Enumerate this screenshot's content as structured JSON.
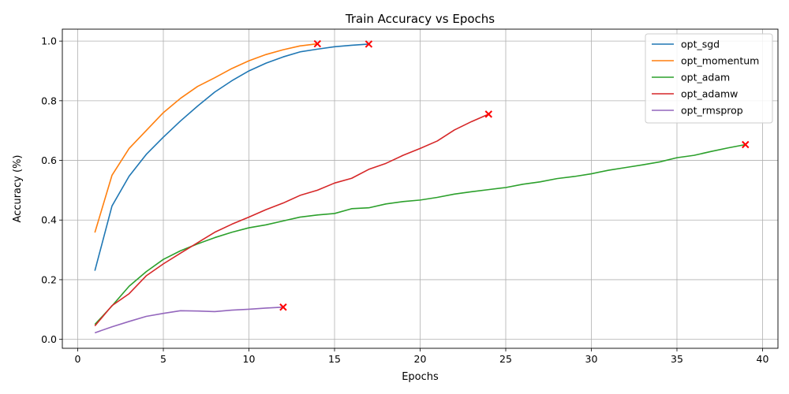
{
  "chart_data": {
    "type": "line",
    "title": "Train Accuracy vs Epochs",
    "xlabel": "Epochs",
    "ylabel": "Accuracy (%)",
    "xlim": [
      -0.9,
      40.9
    ],
    "ylim": [
      -0.03,
      1.04
    ],
    "xticks": [
      0,
      5,
      10,
      15,
      20,
      25,
      30,
      35,
      40
    ],
    "xtick_labels": [
      "0",
      "5",
      "10",
      "15",
      "20",
      "25",
      "30",
      "35",
      "40"
    ],
    "yticks": [
      0.0,
      0.2,
      0.4,
      0.6,
      0.8,
      1.0
    ],
    "ytick_labels": [
      "0.0",
      "0.2",
      "0.4",
      "0.6",
      "0.8",
      "1.0"
    ],
    "grid": true,
    "legend_position": "top-right",
    "end_marker": "x",
    "end_marker_color": "#ff0000",
    "series": [
      {
        "name": "opt_sgd",
        "color": "#1f77b4",
        "x": [
          1,
          2,
          3,
          4,
          5,
          6,
          7,
          8,
          9,
          10,
          11,
          12,
          13,
          14,
          15,
          16,
          17
        ],
        "y": [
          0.23,
          0.447,
          0.547,
          0.62,
          0.678,
          0.732,
          0.782,
          0.829,
          0.867,
          0.9,
          0.926,
          0.947,
          0.964,
          0.973,
          0.981,
          0.986,
          0.99
        ]
      },
      {
        "name": "opt_momentum",
        "color": "#ff7f0e",
        "x": [
          1,
          2,
          3,
          4,
          5,
          6,
          7,
          8,
          9,
          10,
          11,
          12,
          13,
          14
        ],
        "y": [
          0.358,
          0.55,
          0.64,
          0.7,
          0.76,
          0.808,
          0.848,
          0.877,
          0.908,
          0.934,
          0.955,
          0.971,
          0.984,
          0.991
        ]
      },
      {
        "name": "opt_adam",
        "color": "#2ca02c",
        "x": [
          1,
          2,
          3,
          4,
          5,
          6,
          7,
          8,
          9,
          10,
          11,
          12,
          13,
          14,
          15,
          16,
          17,
          18,
          19,
          20,
          21,
          22,
          23,
          24,
          25,
          26,
          27,
          28,
          29,
          30,
          31,
          32,
          33,
          34,
          35,
          36,
          37,
          38,
          39
        ],
        "y": [
          0.05,
          0.112,
          0.178,
          0.227,
          0.268,
          0.297,
          0.32,
          0.341,
          0.359,
          0.374,
          0.384,
          0.397,
          0.41,
          0.417,
          0.422,
          0.438,
          0.441,
          0.454,
          0.462,
          0.467,
          0.476,
          0.487,
          0.495,
          0.502,
          0.509,
          0.52,
          0.528,
          0.539,
          0.546,
          0.555,
          0.567,
          0.576,
          0.585,
          0.595,
          0.609,
          0.617,
          0.63,
          0.642,
          0.653
        ]
      },
      {
        "name": "opt_adamw",
        "color": "#d62728",
        "x": [
          1,
          2,
          3,
          4,
          5,
          6,
          7,
          8,
          9,
          10,
          11,
          12,
          13,
          14,
          15,
          16,
          17,
          18,
          19,
          20,
          21,
          22,
          23,
          24
        ],
        "y": [
          0.045,
          0.113,
          0.153,
          0.213,
          0.253,
          0.289,
          0.324,
          0.359,
          0.386,
          0.41,
          0.435,
          0.457,
          0.483,
          0.5,
          0.524,
          0.54,
          0.57,
          0.59,
          0.617,
          0.64,
          0.665,
          0.702,
          0.73,
          0.755
        ]
      },
      {
        "name": "opt_rmsprop",
        "color": "#9467bd",
        "x": [
          1,
          2,
          3,
          4,
          5,
          6,
          7,
          8,
          9,
          10,
          11,
          12
        ],
        "y": [
          0.022,
          0.042,
          0.06,
          0.077,
          0.087,
          0.096,
          0.095,
          0.093,
          0.098,
          0.101,
          0.105,
          0.108
        ]
      }
    ]
  }
}
